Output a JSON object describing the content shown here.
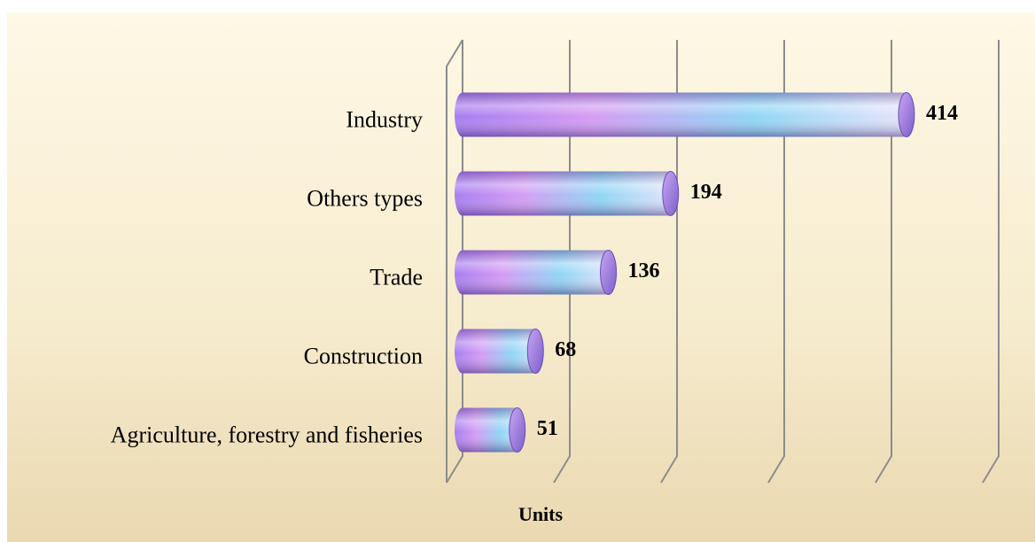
{
  "chart_data": {
    "type": "bar",
    "orientation": "horizontal",
    "x_label": "Units",
    "categories": [
      "Industry",
      "Others types",
      "Trade",
      "Construction",
      "Agriculture, forestry and fisheries"
    ],
    "values": [
      414,
      194,
      136,
      68,
      51
    ],
    "xlim": [
      0,
      500
    ],
    "xticks": [
      0,
      100,
      200,
      300,
      400,
      500
    ],
    "grid": true
  }
}
